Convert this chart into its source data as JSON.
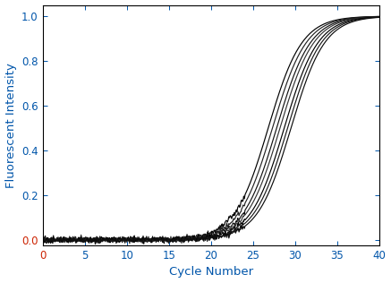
{
  "title": "",
  "xlabel": "Cycle Number",
  "ylabel": "Fluorescent Intensity",
  "xlabel_color": "#0055AA",
  "ylabel_color": "#0055AA",
  "tick_color": "#0055AA",
  "zero_tick_color": "#CC2200",
  "xlim": [
    0,
    40
  ],
  "ylim": [
    -0.025,
    1.05
  ],
  "xticks": [
    0,
    5,
    10,
    15,
    20,
    25,
    30,
    35,
    40
  ],
  "yticks": [
    0.0,
    0.2,
    0.4,
    0.6,
    0.8,
    1.0
  ],
  "n_curves": 7,
  "inflection_points": [
    26.8,
    27.3,
    27.8,
    28.2,
    28.7,
    29.1,
    29.5
  ],
  "steepness": [
    0.5,
    0.5,
    0.5,
    0.5,
    0.5,
    0.5,
    0.5
  ],
  "noise_amplitude": 0.006,
  "noise_seed": 99,
  "line_colors": [
    "#000000",
    "#222222",
    "#111111",
    "#333333",
    "#000000",
    "#1a1a1a",
    "#0d0d0d"
  ],
  "line_width": 0.85,
  "background_color": "#ffffff",
  "figsize": [
    4.37,
    3.16
  ],
  "dpi": 100
}
